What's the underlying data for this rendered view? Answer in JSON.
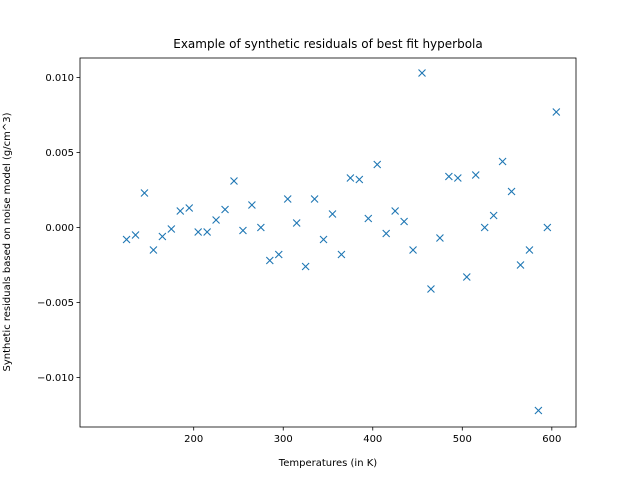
{
  "chart_data": {
    "type": "scatter",
    "title": "Example of synthetic residuals of best fit hyperbola",
    "xlabel": "Temperatures (in K)",
    "ylabel": "Synthetic residuals based on noise model (g/cm^3)",
    "xlim": [
      73,
      627
    ],
    "ylim": [
      -0.0133,
      0.0113
    ],
    "xticks": [
      200,
      300,
      400,
      500,
      600
    ],
    "xtick_labels": [
      "200",
      "300",
      "400",
      "500",
      "600"
    ],
    "yticks": [
      -0.01,
      -0.005,
      0.0,
      0.005,
      0.01
    ],
    "ytick_labels": [
      "−0.010",
      "−0.005",
      "0.000",
      "0.005",
      "0.010"
    ],
    "marker": "x",
    "color": "#1f77b4",
    "grid": false,
    "series": [
      {
        "x": [
          125,
          135,
          145,
          155,
          165,
          175,
          185,
          195,
          205,
          215,
          225,
          235,
          245,
          255,
          265,
          275,
          285,
          295,
          305,
          315,
          325,
          335,
          345,
          355,
          365,
          375,
          385,
          395,
          405,
          415,
          425,
          435,
          445,
          455,
          465,
          475,
          485,
          495,
          505,
          515,
          525,
          535,
          545,
          555,
          565,
          575,
          585,
          595,
          605
        ],
        "y": [
          -0.0008,
          -0.0005,
          0.0023,
          -0.0015,
          -0.0006,
          -0.0001,
          0.0011,
          0.0013,
          -0.0003,
          -0.0003,
          0.0005,
          0.0012,
          0.0031,
          -0.0002,
          0.0015,
          0.0,
          -0.0022,
          -0.0018,
          0.0019,
          0.0003,
          -0.0026,
          0.0019,
          -0.0008,
          0.0009,
          -0.0018,
          0.0033,
          0.0032,
          0.0006,
          0.0042,
          -0.0004,
          0.0011,
          0.0004,
          -0.0015,
          0.0103,
          -0.0041,
          -0.0007,
          0.0034,
          0.0033,
          -0.0033,
          0.0035,
          0.0,
          0.0008,
          0.0044,
          0.0024,
          -0.0025,
          -0.0015,
          -0.0122,
          0.0,
          0.0077
        ]
      }
    ]
  }
}
